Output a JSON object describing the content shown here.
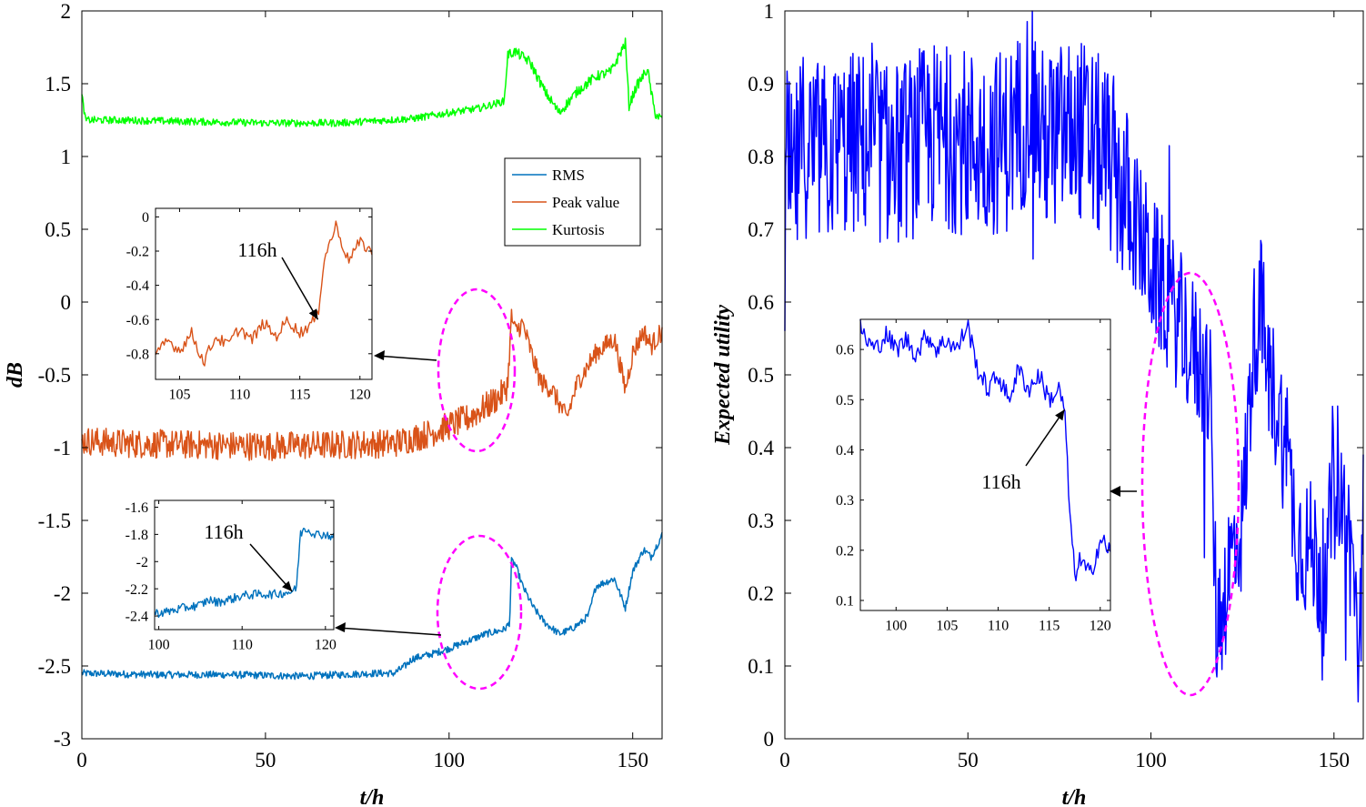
{
  "chart_data": [
    {
      "type": "line",
      "panel": "left",
      "xlabel": "t/h",
      "ylabel": "dB",
      "xlim": [
        0,
        158
      ],
      "ylim": [
        -3,
        2
      ],
      "xticks": [
        0,
        50,
        100,
        150
      ],
      "yticks": [
        -3,
        -2.5,
        -2,
        -1.5,
        -1,
        -0.5,
        0,
        0.5,
        1,
        1.5,
        2
      ],
      "ytick_labels": [
        "-3",
        "-2.5",
        "-2",
        "-1.5",
        "-1",
        "-0.5",
        "0",
        "0.5",
        "1",
        "1.5",
        "2"
      ],
      "legend": [
        "RMS",
        "Peak value",
        "Kurtosis"
      ],
      "legend_position": "upper-right",
      "series": [
        {
          "name": "RMS",
          "color": "#0072BD",
          "x": [
            0,
            20,
            40,
            60,
            70,
            80,
            85,
            88,
            90,
            95,
            100,
            105,
            110,
            115,
            116,
            116.5,
            117,
            118,
            120,
            123,
            126,
            130,
            133,
            136,
            138,
            140,
            145,
            148,
            150,
            153,
            155,
            158
          ],
          "values": [
            -2.55,
            -2.56,
            -2.56,
            -2.57,
            -2.56,
            -2.55,
            -2.55,
            -2.5,
            -2.45,
            -2.42,
            -2.38,
            -2.33,
            -2.28,
            -2.25,
            -2.22,
            -2.2,
            -1.78,
            -1.8,
            -1.95,
            -2.1,
            -2.2,
            -2.28,
            -2.25,
            -2.2,
            -2.15,
            -1.95,
            -1.9,
            -2.1,
            -1.85,
            -1.7,
            -1.75,
            -1.6
          ]
        },
        {
          "name": "Peak value",
          "color": "#D95319",
          "x": [
            0,
            10,
            30,
            50,
            70,
            85,
            95,
            100,
            105,
            110,
            115,
            116,
            117,
            118,
            120,
            123,
            125,
            128,
            130,
            132,
            135,
            140,
            145,
            148,
            150,
            153,
            155,
            158
          ],
          "values": [
            -0.95,
            -0.97,
            -0.98,
            -0.99,
            -0.98,
            -0.97,
            -0.9,
            -0.85,
            -0.8,
            -0.72,
            -0.62,
            -0.55,
            -0.1,
            -0.2,
            -0.15,
            -0.4,
            -0.55,
            -0.6,
            -0.7,
            -0.8,
            -0.55,
            -0.35,
            -0.25,
            -0.6,
            -0.35,
            -0.2,
            -0.3,
            -0.2
          ]
        },
        {
          "name": "Kurtosis",
          "color": "#00FF00",
          "x": [
            0,
            1,
            10,
            30,
            50,
            70,
            90,
            100,
            108,
            115,
            116,
            118,
            122,
            126,
            130,
            135,
            140,
            144,
            148,
            149,
            151,
            154,
            156,
            158
          ],
          "values": [
            1.42,
            1.25,
            1.25,
            1.24,
            1.23,
            1.23,
            1.26,
            1.3,
            1.33,
            1.38,
            1.7,
            1.72,
            1.65,
            1.45,
            1.3,
            1.45,
            1.55,
            1.58,
            1.78,
            1.35,
            1.48,
            1.6,
            1.3,
            1.25
          ]
        }
      ],
      "insets": [
        {
          "name": "peak-inset",
          "series": "Peak value",
          "color": "#D95319",
          "xlim": [
            103,
            121
          ],
          "ylim": [
            -0.95,
            0.05
          ],
          "xticks": [
            105,
            110,
            115,
            120
          ],
          "yticks": [
            0,
            -0.2,
            -0.4,
            -0.6,
            -0.8
          ],
          "ytick_labels": [
            "0",
            "-0.2",
            "-0.4",
            "-0.6",
            "-0.8"
          ],
          "x": [
            103,
            104,
            105,
            106,
            107,
            108,
            109,
            110,
            111,
            112,
            113,
            114,
            115,
            116,
            116.5,
            117,
            117.5,
            118,
            119,
            120,
            121
          ],
          "values": [
            -0.82,
            -0.72,
            -0.78,
            -0.68,
            -0.85,
            -0.7,
            -0.75,
            -0.65,
            -0.72,
            -0.62,
            -0.7,
            -0.6,
            -0.68,
            -0.62,
            -0.58,
            -0.25,
            -0.15,
            -0.05,
            -0.25,
            -0.15,
            -0.2
          ],
          "annotation": "116h",
          "annotation_target": [
            116.5,
            -0.6
          ]
        },
        {
          "name": "rms-inset",
          "series": "RMS",
          "color": "#0072BD",
          "xlim": [
            99.5,
            121
          ],
          "ylim": [
            -2.5,
            -1.55
          ],
          "xticks": [
            100,
            110,
            120
          ],
          "yticks": [
            -1.6,
            -1.8,
            -2,
            -2.2,
            -2.4
          ],
          "ytick_labels": [
            "-1.6",
            "-1.8",
            "-2",
            "-2.2",
            "-2.4"
          ],
          "x": [
            99.5,
            101,
            103,
            105,
            106,
            107,
            109,
            110,
            112,
            114,
            116,
            116.5,
            117,
            117.5,
            118,
            119,
            120,
            121
          ],
          "values": [
            -2.38,
            -2.37,
            -2.34,
            -2.32,
            -2.28,
            -2.3,
            -2.27,
            -2.25,
            -2.24,
            -2.24,
            -2.22,
            -2.2,
            -1.8,
            -1.75,
            -1.77,
            -1.8,
            -1.8,
            -1.82
          ],
          "annotation": "116h",
          "annotation_target": [
            116,
            -2.22
          ]
        }
      ]
    },
    {
      "type": "line",
      "panel": "right",
      "xlabel": "t/h",
      "ylabel": "Expected utility",
      "xlim": [
        0,
        158
      ],
      "ylim": [
        0,
        1
      ],
      "xticks": [
        0,
        50,
        100,
        150
      ],
      "yticks": [
        0,
        0.1,
        0.2,
        0.3,
        0.4,
        0.5,
        0.6,
        0.7,
        0.8,
        0.9,
        1
      ],
      "ytick_labels": [
        "0",
        "0.1",
        "0.2",
        "0.3",
        "0.4",
        "0.5",
        "0.6",
        "0.7",
        "0.8",
        "0.9",
        "1"
      ],
      "series": [
        {
          "name": "Expected utility",
          "color": "#0000FF",
          "x": [
            0,
            0.5,
            2,
            5,
            10,
            20,
            30,
            40,
            50,
            60,
            65,
            67,
            70,
            80,
            88,
            90,
            95,
            100,
            105,
            110,
            115,
            116,
            117,
            118,
            120,
            122,
            125,
            128,
            130,
            132,
            135,
            138,
            140,
            145,
            148,
            150,
            153,
            155,
            157,
            158
          ],
          "values": [
            0.6,
            0.8,
            0.75,
            0.82,
            0.8,
            0.82,
            0.8,
            0.83,
            0.82,
            0.82,
            0.85,
            0.9,
            0.82,
            0.84,
            0.8,
            0.78,
            0.72,
            0.65,
            0.6,
            0.55,
            0.5,
            0.48,
            0.3,
            0.15,
            0.2,
            0.25,
            0.3,
            0.55,
            0.6,
            0.5,
            0.45,
            0.35,
            0.28,
            0.25,
            0.2,
            0.4,
            0.3,
            0.25,
            0.1,
            0.35
          ]
        }
      ],
      "insets": [
        {
          "name": "utility-inset",
          "series": "Expected utility",
          "color": "#0000FF",
          "xlim": [
            96.5,
            121
          ],
          "ylim": [
            0.08,
            0.66
          ],
          "xticks": [
            100,
            105,
            110,
            115,
            120
          ],
          "yticks": [
            0.1,
            0.2,
            0.3,
            0.4,
            0.5,
            0.6
          ],
          "ytick_labels": [
            "0.1",
            "0.2",
            "0.3",
            "0.4",
            "0.5",
            "0.6"
          ],
          "x": [
            96.5,
            97,
            98,
            99,
            100,
            101,
            102,
            103,
            104,
            105,
            106,
            107,
            108,
            109,
            110,
            111,
            112,
            113,
            114,
            115,
            116,
            116.5,
            117,
            117.5,
            118,
            119,
            120,
            121
          ],
          "values": [
            0.65,
            0.62,
            0.6,
            0.63,
            0.6,
            0.62,
            0.59,
            0.63,
            0.6,
            0.62,
            0.6,
            0.65,
            0.56,
            0.52,
            0.55,
            0.5,
            0.56,
            0.52,
            0.55,
            0.5,
            0.52,
            0.48,
            0.28,
            0.15,
            0.18,
            0.15,
            0.22,
            0.2
          ],
          "annotation": "116h",
          "annotation_target": [
            116.5,
            0.48
          ]
        }
      ]
    }
  ]
}
